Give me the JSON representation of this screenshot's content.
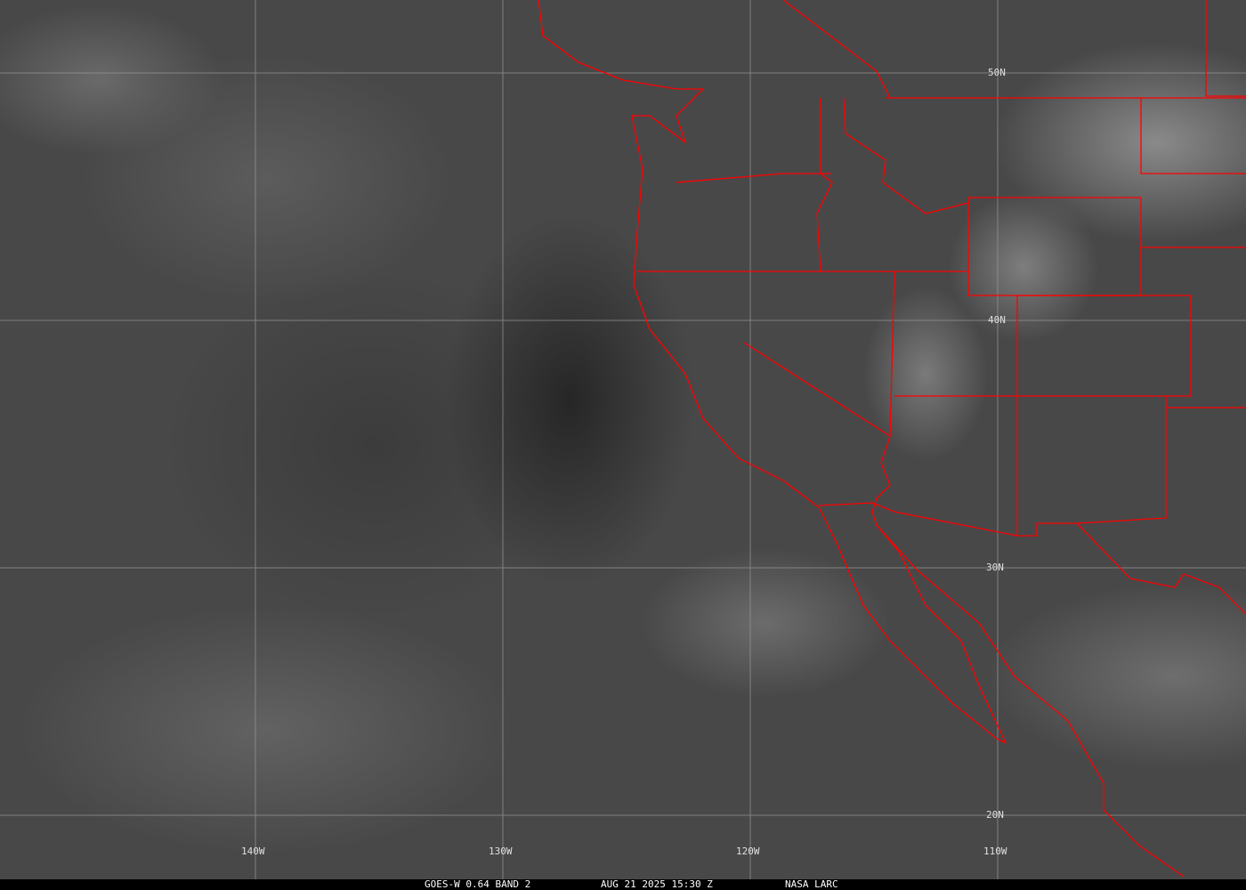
{
  "grid": {
    "latitudes": [
      "50N",
      "40N",
      "30N",
      "20N"
    ],
    "longitudes": [
      "140W",
      "130W",
      "120W",
      "110W"
    ]
  },
  "caption": {
    "satellite": "GOES-W 0.64 BAND 2",
    "datetime": "AUG 21 2025 15:30 Z",
    "source": "NASA LARC"
  },
  "colors": {
    "borders": "#ff0000",
    "grid": "#9a9a9a",
    "caption_bg": "#000000"
  }
}
